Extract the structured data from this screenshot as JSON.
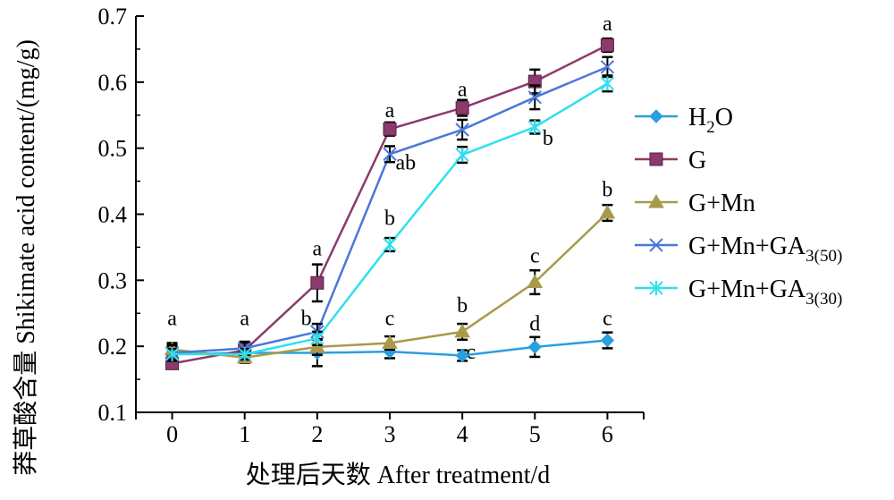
{
  "chart_data": {
    "type": "line",
    "title": "",
    "xlabel": "处理后天数 After treatment/d",
    "ylabel_cn": "莽草酸含量",
    "ylabel_en": "Shikimate acid content/(mg/g)",
    "x": [
      0,
      1,
      2,
      3,
      4,
      5,
      6
    ],
    "xlim": [
      -0.5,
      6.5
    ],
    "ylim": [
      0.1,
      0.7
    ],
    "y_ticks": [
      0.1,
      0.2,
      0.3,
      0.4,
      0.5,
      0.6,
      0.7
    ],
    "y_tick_labels": [
      "0.1",
      "0.2",
      "0.3",
      "0.4",
      "0.5",
      "0.6",
      "0.7"
    ],
    "x_tick_labels": [
      "0",
      "1",
      "2",
      "3",
      "4",
      "5",
      "6"
    ],
    "legend_position": "right",
    "series": [
      {
        "name": "H2O",
        "legend_main": "H",
        "legend_sub": "2",
        "legend_tail": "O",
        "color": "#2a9fe0",
        "marker": "diamond",
        "values": [
          0.188,
          0.19,
          0.19,
          0.192,
          0.186,
          0.199,
          0.209
        ],
        "errors": [
          0.012,
          0.008,
          0.02,
          0.01,
          0.008,
          0.015,
          0.012
        ]
      },
      {
        "name": "G",
        "legend_main": "G",
        "legend_sub": "",
        "legend_tail": "",
        "color": "#8b3a6b",
        "marker": "square",
        "values": [
          0.174,
          0.194,
          0.296,
          0.529,
          0.561,
          0.601,
          0.656
        ],
        "errors": [
          0.008,
          0.012,
          0.028,
          0.01,
          0.012,
          0.018,
          0.01
        ]
      },
      {
        "name": "G+Mn",
        "legend_main": "G+Mn",
        "legend_sub": "",
        "legend_tail": "",
        "color": "#a89a4a",
        "marker": "triangle",
        "values": [
          0.195,
          0.183,
          0.199,
          0.205,
          0.222,
          0.297,
          0.402
        ],
        "errors": [
          0.01,
          0.008,
          0.012,
          0.01,
          0.012,
          0.018,
          0.012
        ]
      },
      {
        "name": "G+Mn+GA3(50)",
        "legend_main": "G+Mn+GA",
        "legend_sub": "3(50)",
        "legend_tail": "",
        "color": "#4a78d8",
        "marker": "x",
        "values": [
          0.19,
          0.197,
          0.222,
          0.491,
          0.528,
          0.577,
          0.623
        ],
        "errors": [
          0.012,
          0.01,
          0.012,
          0.012,
          0.015,
          0.018,
          0.015
        ]
      },
      {
        "name": "G+Mn+GA3(30)",
        "legend_main": "G+Mn+GA",
        "legend_sub": "3(30)",
        "legend_tail": "",
        "color": "#2ee0f0",
        "marker": "asterisk",
        "values": [
          0.188,
          0.188,
          0.212,
          0.354,
          0.49,
          0.532,
          0.598
        ],
        "errors": [
          0.008,
          0.008,
          0.01,
          0.01,
          0.012,
          0.01,
          0.012
        ]
      }
    ],
    "annotations": [
      {
        "x": 0,
        "y": 0.232,
        "text": "a"
      },
      {
        "x": 1,
        "y": 0.232,
        "text": "a"
      },
      {
        "x": 2,
        "y": 0.338,
        "text": "a"
      },
      {
        "x": 1.85,
        "y": 0.232,
        "text": "b"
      },
      {
        "x": 3,
        "y": 0.547,
        "text": "a"
      },
      {
        "x": 3.22,
        "y": 0.468,
        "text": "ab"
      },
      {
        "x": 3,
        "y": 0.384,
        "text": "b"
      },
      {
        "x": 3,
        "y": 0.232,
        "text": "c"
      },
      {
        "x": 4,
        "y": 0.579,
        "text": "a"
      },
      {
        "x": 4,
        "y": 0.252,
        "text": "b"
      },
      {
        "x": 4.12,
        "y": 0.181,
        "text": "c"
      },
      {
        "x": 5,
        "y": 0.327,
        "text": "c"
      },
      {
        "x": 5,
        "y": 0.224,
        "text": "d"
      },
      {
        "x": 5.18,
        "y": 0.505,
        "text": "b"
      },
      {
        "x": 6,
        "y": 0.678,
        "text": "a"
      },
      {
        "x": 6,
        "y": 0.427,
        "text": "b"
      },
      {
        "x": 6,
        "y": 0.232,
        "text": "c"
      }
    ]
  }
}
